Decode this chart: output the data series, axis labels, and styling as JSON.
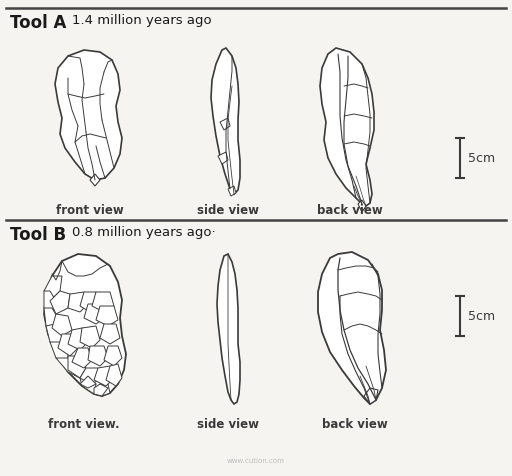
{
  "title_a": "Tool A",
  "subtitle_a": "1.4 million years ago",
  "title_b": "Tool B",
  "subtitle_b": "0.8 million years ago",
  "label_front": "front view",
  "label_side": "side view",
  "label_back": "back view",
  "label_scale": "5cm",
  "bg_color": "#f5f4f0",
  "line_color": "#3a3a3a",
  "title_bold_color": "#1a1a1a",
  "divider_color": "#444444"
}
